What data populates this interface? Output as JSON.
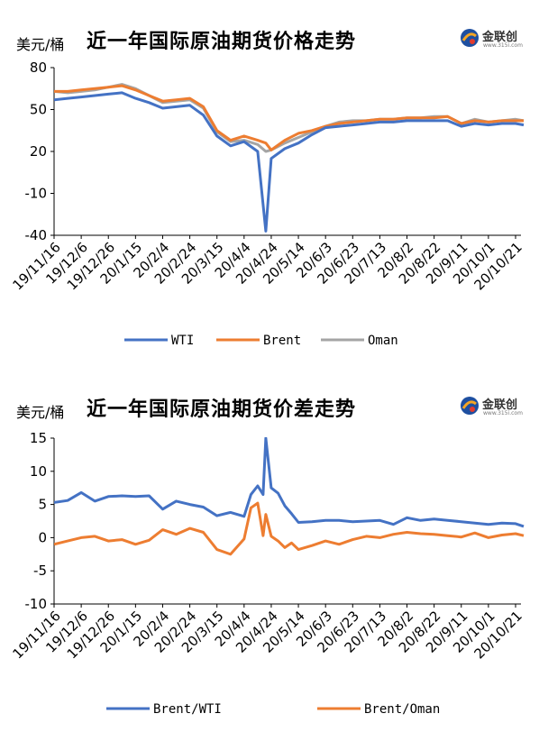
{
  "page": {
    "logo": {
      "name": "金联创",
      "url": "www.315i.com"
    }
  },
  "chart_data": [
    {
      "type": "line",
      "title": "近一年国际原油期货价格走势",
      "unit_label": "美元/桶",
      "ylim": [
        -40,
        80
      ],
      "yticks": [
        80,
        50,
        20,
        -10,
        -40
      ],
      "x_tick_labels": [
        "19/11/16",
        "19/12/6",
        "19/12/26",
        "20/1/15",
        "20/2/4",
        "20/2/24",
        "20/3/15",
        "20/4/4",
        "20/4/24",
        "20/5/14",
        "20/6/3",
        "20/6/23",
        "20/7/13",
        "20/8/2",
        "20/8/22",
        "20/9/11",
        "20/10/1",
        "20/10/21"
      ],
      "legend_position": "bottom",
      "grid": false,
      "colors": {
        "WTI": "#4472C4",
        "Brent": "#ED7D31",
        "Oman": "#A5A5A5"
      },
      "x": [
        "19/11/16",
        "19/11/26",
        "19/12/6",
        "19/12/16",
        "19/12/26",
        "20/1/5",
        "20/1/15",
        "20/1/25",
        "20/2/4",
        "20/2/14",
        "20/2/24",
        "20/3/5",
        "20/3/15",
        "20/3/25",
        "20/4/4",
        "20/4/14",
        "20/4/20",
        "20/4/24",
        "20/5/4",
        "20/5/14",
        "20/5/24",
        "20/6/3",
        "20/6/13",
        "20/6/23",
        "20/7/3",
        "20/7/13",
        "20/7/23",
        "20/8/2",
        "20/8/12",
        "20/8/22",
        "20/9/1",
        "20/9/11",
        "20/9/21",
        "20/10/1",
        "20/10/11",
        "20/10/21",
        "20/10/27"
      ],
      "series": [
        {
          "name": "WTI",
          "values": [
            57,
            58,
            59,
            60,
            61,
            62,
            58,
            55,
            51,
            52,
            53,
            46,
            31,
            24,
            27,
            20,
            -37,
            15,
            22,
            26,
            32,
            37,
            38,
            39,
            40,
            41,
            41,
            42,
            42,
            42,
            42,
            38,
            40,
            39,
            40,
            40,
            39
          ]
        },
        {
          "name": "Brent",
          "values": [
            63,
            63,
            64,
            65,
            66,
            67,
            64,
            60,
            56,
            57,
            58,
            52,
            35,
            28,
            31,
            28,
            26,
            21,
            28,
            33,
            35,
            38,
            40,
            41,
            42,
            43,
            43,
            44,
            44,
            44,
            45,
            40,
            42,
            41,
            42,
            42,
            42
          ]
        },
        {
          "name": "Oman",
          "values": [
            63,
            62,
            63,
            64,
            66,
            68,
            65,
            60,
            55,
            56,
            57,
            51,
            34,
            27,
            28,
            25,
            20,
            21,
            26,
            30,
            34,
            38,
            41,
            42,
            42,
            43,
            43,
            44,
            44,
            45,
            45,
            40,
            43,
            41,
            42,
            43,
            42
          ]
        }
      ]
    },
    {
      "type": "line",
      "title": "近一年国际原油期货价差走势",
      "unit_label": "美元/桶",
      "ylim": [
        -10,
        15
      ],
      "yticks": [
        15,
        10,
        5,
        0,
        -5,
        -10
      ],
      "x_tick_labels": [
        "19/11/16",
        "19/12/6",
        "19/12/26",
        "20/1/15",
        "20/2/4",
        "20/2/24",
        "20/3/15",
        "20/4/4",
        "20/4/24",
        "20/5/14",
        "20/6/3",
        "20/6/23",
        "20/7/13",
        "20/8/2",
        "20/8/22",
        "20/9/11",
        "20/10/1",
        "20/10/21"
      ],
      "legend_position": "bottom",
      "grid": false,
      "colors": {
        "Brent/WTI": "#4472C4",
        "Brent/Oman": "#ED7D31"
      },
      "x": [
        "19/11/16",
        "19/11/26",
        "19/12/6",
        "19/12/16",
        "19/12/26",
        "20/1/5",
        "20/1/15",
        "20/1/25",
        "20/2/4",
        "20/2/14",
        "20/2/24",
        "20/3/5",
        "20/3/15",
        "20/3/25",
        "20/4/4",
        "20/4/9",
        "20/4/14",
        "20/4/18",
        "20/4/20",
        "20/4/24",
        "20/4/29",
        "20/5/4",
        "20/5/9",
        "20/5/14",
        "20/5/24",
        "20/6/3",
        "20/6/13",
        "20/6/23",
        "20/7/3",
        "20/7/13",
        "20/7/23",
        "20/8/2",
        "20/8/12",
        "20/8/22",
        "20/9/1",
        "20/9/11",
        "20/9/21",
        "20/10/1",
        "20/10/11",
        "20/10/21",
        "20/10/27"
      ],
      "series": [
        {
          "name": "Brent/WTI",
          "values": [
            5.3,
            5.6,
            6.8,
            5.5,
            6.2,
            6.3,
            6.2,
            6.3,
            4.3,
            5.5,
            5.0,
            4.6,
            3.3,
            3.8,
            3.2,
            6.5,
            7.8,
            6.5,
            15,
            7.5,
            6.7,
            4.8,
            3.6,
            2.3,
            2.4,
            2.6,
            2.6,
            2.4,
            2.5,
            2.6,
            2.0,
            3.0,
            2.6,
            2.8,
            2.6,
            2.4,
            2.2,
            2.0,
            2.2,
            2.1,
            1.7
          ]
        },
        {
          "name": "Brent/Oman",
          "values": [
            -1.0,
            -0.5,
            0.0,
            0.2,
            -0.5,
            -0.3,
            -1.0,
            -0.4,
            1.2,
            0.5,
            1.4,
            0.8,
            -1.8,
            -2.5,
            -0.2,
            4.5,
            5.2,
            0.3,
            3.5,
            0.2,
            -0.5,
            -1.5,
            -0.8,
            -1.8,
            -1.2,
            -0.5,
            -1.0,
            -0.3,
            0.2,
            0.0,
            0.5,
            0.8,
            0.6,
            0.5,
            0.3,
            0.1,
            0.7,
            0.0,
            0.4,
            0.6,
            0.3
          ]
        }
      ]
    }
  ]
}
